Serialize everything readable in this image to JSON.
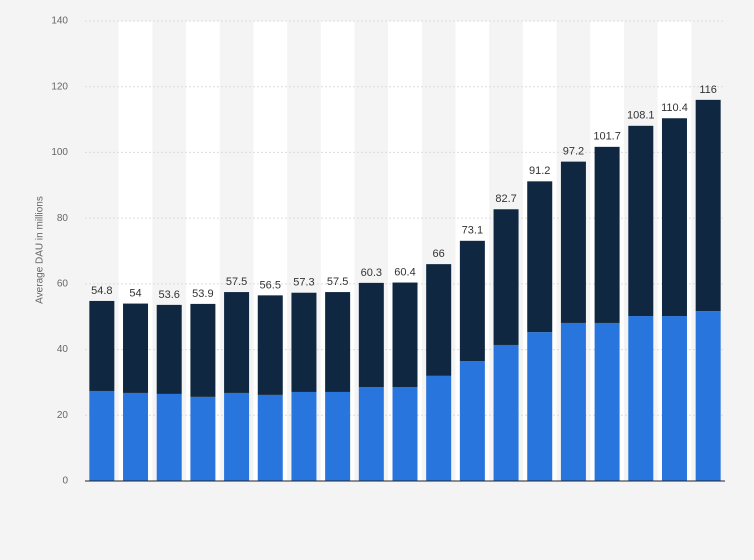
{
  "chart_data": {
    "type": "stacked_bar",
    "y_label": "Average DAU in millions",
    "series": [
      {
        "color": "#2876dd",
        "values": [
          27.4,
          26.8,
          26.5,
          25.6,
          26.8,
          26.2,
          27.1,
          27.1,
          28.6,
          28.6,
          32.0,
          36.5,
          41.4,
          45.3,
          48.1,
          48.1,
          50.2,
          50.2,
          51.7
        ]
      },
      {
        "color": "#0f2740",
        "values": [
          27.4,
          27.2,
          27.1,
          28.3,
          30.7,
          30.3,
          30.2,
          30.4,
          31.7,
          31.8,
          34.0,
          36.6,
          41.3,
          45.9,
          49.1,
          53.6,
          57.9,
          60.2,
          64.3
        ]
      }
    ],
    "totals": [
      54.8,
      54,
      53.6,
      53.9,
      57.5,
      56.5,
      57.3,
      57.5,
      60.3,
      60.4,
      66,
      73.1,
      82.7,
      91.2,
      97.2,
      101.7,
      108.1,
      110.4,
      116
    ],
    "ylim": [
      0,
      140
    ],
    "yticks": [
      0,
      20,
      40,
      60,
      80,
      100,
      120,
      140
    ],
    "grid": true,
    "stripes": true
  }
}
